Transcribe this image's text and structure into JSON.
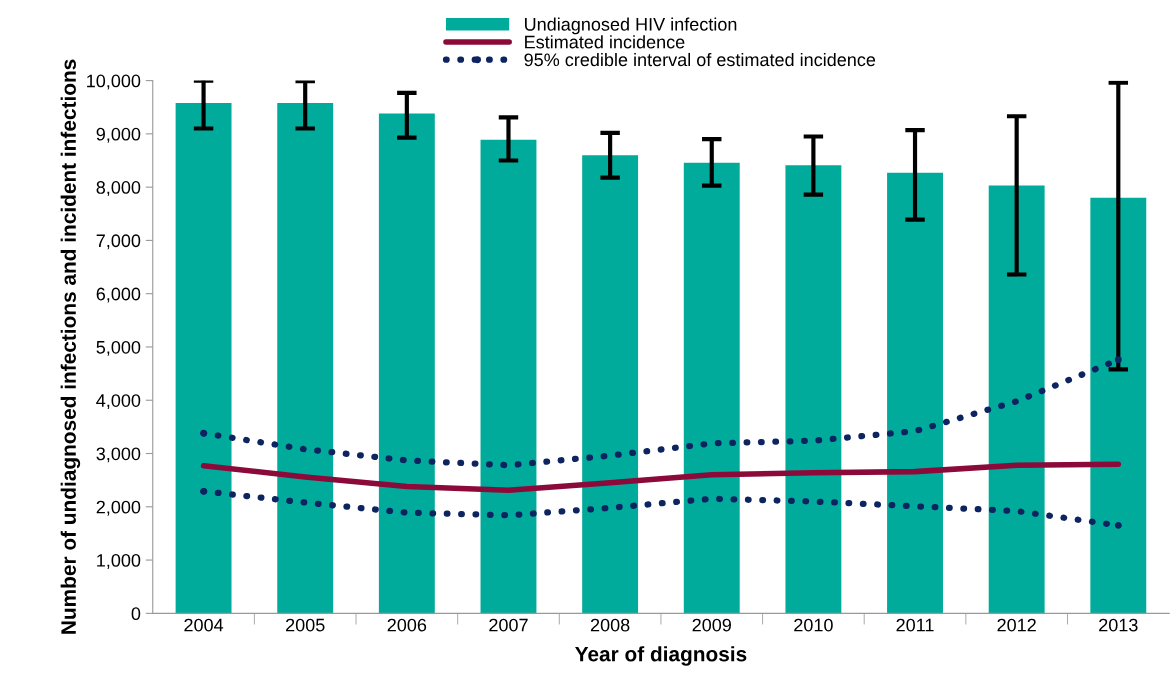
{
  "chart_data": {
    "type": "bar",
    "xlabel": "Year of diagnosis",
    "ylabel": "Number of undiagnosed infections and incident infections",
    "categories": [
      "2004",
      "2005",
      "2006",
      "2007",
      "2008",
      "2009",
      "2010",
      "2011",
      "2012",
      "2013"
    ],
    "series": [
      {
        "name": "Undiagnosed HIV infection",
        "color": "#00ab9b",
        "values": [
          9580,
          9580,
          9380,
          8890,
          8600,
          8460,
          8410,
          8270,
          8030,
          7800
        ],
        "errors": [
          [
            9100,
            10000
          ],
          [
            9100,
            9990
          ],
          [
            8930,
            9770
          ],
          [
            8500,
            9310
          ],
          [
            8180,
            9020
          ],
          [
            8030,
            8900
          ],
          [
            7860,
            8950
          ],
          [
            7390,
            9070
          ],
          [
            6360,
            9330
          ],
          [
            4580,
            9960
          ]
        ]
      },
      {
        "name": "Estimated incidence",
        "type": "line",
        "color": "#8b0a3a",
        "line_style": "solid",
        "values": [
          2770,
          2560,
          2380,
          2310,
          2450,
          2600,
          2640,
          2660,
          2780,
          2800
        ]
      },
      {
        "name": "95% credible interval of estimated incidence",
        "type": "line",
        "color": "#0d2461",
        "line_style": "dotted",
        "values": [
          3380,
          3080,
          2870,
          2780,
          2960,
          3190,
          3240,
          3420,
          3980,
          4760
        ]
      },
      {
        "type": "line",
        "color": "#0d2461",
        "line_style": "dotted",
        "values": [
          2290,
          2080,
          1890,
          1840,
          1980,
          2150,
          2100,
          2010,
          1920,
          1650
        ]
      }
    ],
    "ylim": [
      0,
      10000
    ],
    "yticks": [
      {
        "value": 0,
        "label": "0"
      },
      {
        "value": 1000,
        "label": "1,000"
      },
      {
        "value": 2000,
        "label": "2,000"
      },
      {
        "value": 3000,
        "label": "3,000"
      },
      {
        "value": 4000,
        "label": "4,000"
      },
      {
        "value": 5000,
        "label": "5,000"
      },
      {
        "value": 6000,
        "label": "6,000"
      },
      {
        "value": 7000,
        "label": "7,000"
      },
      {
        "value": 8000,
        "label": "8,000"
      },
      {
        "value": 9000,
        "label": "9,000"
      },
      {
        "value": 10000,
        "label": "10,000"
      }
    ],
    "grid": false,
    "legend": "top"
  }
}
